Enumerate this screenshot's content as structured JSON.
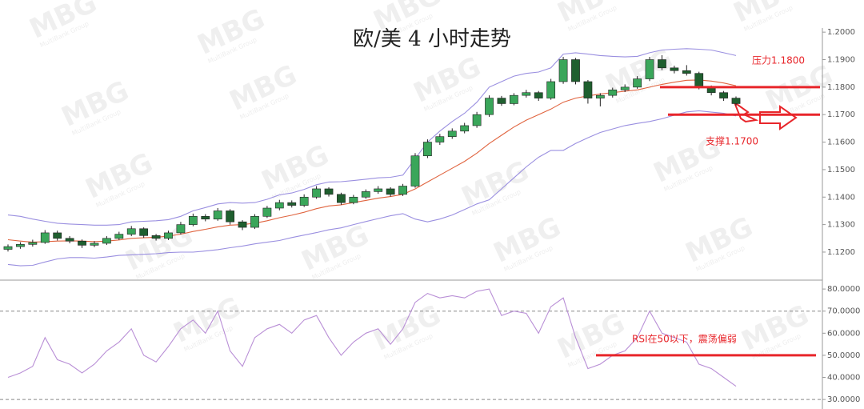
{
  "chart_data": [
    {
      "type": "candlestick",
      "title": "欧/美 4 小时走势",
      "open": [
        1.121,
        1.122,
        1.1228,
        1.1235,
        1.127,
        1.125,
        1.124,
        1.1225,
        1.1232,
        1.125,
        1.1265,
        1.1285,
        1.126,
        1.125,
        1.127,
        1.13,
        1.133,
        1.132,
        1.135,
        1.131,
        1.129,
        1.133,
        1.136,
        1.138,
        1.137,
        1.14,
        1.143,
        1.141,
        1.138,
        1.14,
        1.142,
        1.143,
        1.141,
        1.144,
        1.155,
        1.16,
        1.162,
        1.164,
        1.166,
        1.17,
        1.176,
        1.174,
        1.177,
        1.178,
        1.176,
        1.182,
        1.19,
        1.182,
        1.176,
        1.177,
        1.179,
        1.18,
        1.183,
        1.19,
        1.187,
        1.186,
        1.185,
        1.18,
        1.178,
        1.176
      ],
      "high": [
        1.1228,
        1.1236,
        1.1245,
        1.128,
        1.1278,
        1.1258,
        1.1246,
        1.124,
        1.1258,
        1.1274,
        1.1295,
        1.129,
        1.1266,
        1.1278,
        1.131,
        1.134,
        1.1338,
        1.136,
        1.1356,
        1.1316,
        1.1338,
        1.1368,
        1.139,
        1.1388,
        1.141,
        1.144,
        1.1436,
        1.1416,
        1.1408,
        1.1428,
        1.144,
        1.1436,
        1.1448,
        1.156,
        1.161,
        1.163,
        1.165,
        1.167,
        1.171,
        1.177,
        1.1768,
        1.1778,
        1.179,
        1.1786,
        1.183,
        1.191,
        1.1906,
        1.1826,
        1.1778,
        1.1798,
        1.181,
        1.184,
        1.191,
        1.1916,
        1.1878,
        1.188,
        1.1856,
        1.1806,
        1.1786,
        1.1766
      ],
      "low": [
        1.1202,
        1.1212,
        1.122,
        1.123,
        1.1242,
        1.1232,
        1.1215,
        1.1218,
        1.1226,
        1.1244,
        1.1258,
        1.1252,
        1.1242,
        1.1244,
        1.1264,
        1.1294,
        1.1312,
        1.1314,
        1.13,
        1.128,
        1.1284,
        1.1324,
        1.1352,
        1.1362,
        1.1364,
        1.1394,
        1.1402,
        1.1372,
        1.1374,
        1.1394,
        1.1412,
        1.1402,
        1.1404,
        1.1434,
        1.1542,
        1.159,
        1.1612,
        1.1632,
        1.1652,
        1.1692,
        1.1732,
        1.1734,
        1.1762,
        1.175,
        1.1754,
        1.1812,
        1.181,
        1.174,
        1.173,
        1.1762,
        1.1782,
        1.1794,
        1.1822,
        1.1862,
        1.185,
        1.1842,
        1.1792,
        1.177,
        1.175,
        1.1732
      ],
      "close": [
        1.122,
        1.1228,
        1.1235,
        1.127,
        1.125,
        1.124,
        1.1225,
        1.1232,
        1.125,
        1.1265,
        1.1285,
        1.126,
        1.125,
        1.127,
        1.13,
        1.133,
        1.132,
        1.135,
        1.131,
        1.129,
        1.133,
        1.136,
        1.138,
        1.137,
        1.14,
        1.143,
        1.141,
        1.138,
        1.14,
        1.142,
        1.143,
        1.141,
        1.144,
        1.155,
        1.16,
        1.162,
        1.164,
        1.166,
        1.17,
        1.176,
        1.174,
        1.177,
        1.178,
        1.176,
        1.182,
        1.19,
        1.182,
        1.176,
        1.177,
        1.179,
        1.18,
        1.183,
        1.19,
        1.187,
        1.186,
        1.185,
        1.18,
        1.178,
        1.176,
        1.174
      ],
      "up_color": "#3aa65a",
      "down_color": "#1f5f2f",
      "series": [
        {
          "color": "#9a8fe0",
          "values": [
            1.1335,
            1.133,
            1.132,
            1.1312,
            1.1305,
            1.1302,
            1.13,
            1.1298,
            1.1298,
            1.13,
            1.131,
            1.1312,
            1.1314,
            1.1318,
            1.133,
            1.135,
            1.1362,
            1.1375,
            1.138,
            1.1378,
            1.138,
            1.1392,
            1.1408,
            1.1415,
            1.1428,
            1.1445,
            1.1455,
            1.1456,
            1.146,
            1.1465,
            1.147,
            1.1472,
            1.148,
            1.154,
            1.16,
            1.164,
            1.1675,
            1.1705,
            1.1745,
            1.18,
            1.182,
            1.184,
            1.185,
            1.1855,
            1.187,
            1.192,
            1.1925,
            1.192,
            1.1915,
            1.1912,
            1.191,
            1.1912,
            1.1925,
            1.1935,
            1.1938,
            1.194,
            1.1938,
            1.1935,
            1.1925,
            1.1915
          ]
        },
        {
          "color": "#e0643f",
          "values": [
            1.1245,
            1.124,
            1.1236,
            1.1238,
            1.124,
            1.1241,
            1.124,
            1.1238,
            1.124,
            1.1244,
            1.125,
            1.1252,
            1.1254,
            1.1258,
            1.1265,
            1.1275,
            1.1283,
            1.1292,
            1.1298,
            1.13,
            1.1305,
            1.1314,
            1.1325,
            1.1334,
            1.1345,
            1.1358,
            1.1368,
            1.1372,
            1.138,
            1.1388,
            1.1396,
            1.1402,
            1.141,
            1.143,
            1.1455,
            1.148,
            1.1505,
            1.153,
            1.156,
            1.1595,
            1.1625,
            1.1655,
            1.168,
            1.17,
            1.172,
            1.1745,
            1.176,
            1.1768,
            1.1775,
            1.178,
            1.1785,
            1.179,
            1.18,
            1.181,
            1.1818,
            1.1825,
            1.1826,
            1.1822,
            1.1815,
            1.1805
          ]
        },
        {
          "color": "#9a8fe0",
          "values": [
            1.1155,
            1.115,
            1.1152,
            1.1164,
            1.1175,
            1.118,
            1.118,
            1.1178,
            1.1182,
            1.1188,
            1.119,
            1.1192,
            1.1194,
            1.1198,
            1.12,
            1.12,
            1.1204,
            1.1209,
            1.1216,
            1.1222,
            1.123,
            1.1236,
            1.1242,
            1.1253,
            1.1262,
            1.1271,
            1.1281,
            1.1288,
            1.13,
            1.1311,
            1.1322,
            1.1332,
            1.134,
            1.132,
            1.131,
            1.132,
            1.1335,
            1.1355,
            1.1375,
            1.139,
            1.143,
            1.147,
            1.151,
            1.1545,
            1.157,
            1.157,
            1.1595,
            1.1616,
            1.1635,
            1.1648,
            1.166,
            1.1668,
            1.1675,
            1.1685,
            1.1698,
            1.171,
            1.1714,
            1.1709,
            1.1705,
            1.1695
          ]
        }
      ],
      "ylim": [
        1.1098,
        1.2015
      ],
      "yticks": [
        {
          "value": 1.12,
          "label": "1.1200"
        },
        {
          "value": 1.13,
          "label": "1.1300"
        },
        {
          "value": 1.14,
          "label": "1.1400"
        },
        {
          "value": 1.15,
          "label": "1.1500"
        },
        {
          "value": 1.16,
          "label": "1.1600"
        },
        {
          "value": 1.17,
          "label": "1.1700"
        },
        {
          "value": 1.18,
          "label": "1.1800"
        },
        {
          "value": 1.19,
          "label": "1.1900"
        },
        {
          "value": 1.2,
          "label": "1.2000"
        }
      ],
      "levels": [
        {
          "value": 1.18,
          "label": "压力1.1800",
          "color": "#e8262b"
        },
        {
          "value": 1.17,
          "label": "支撑1.1700",
          "color": "#e8262b"
        }
      ]
    },
    {
      "type": "line",
      "series": [
        {
          "color": "#b98fd6",
          "values": [
            40,
            42,
            45,
            58,
            48,
            46,
            42,
            46,
            52,
            56,
            62,
            50,
            47,
            54,
            62,
            66,
            60,
            70,
            52,
            45,
            58,
            62,
            64,
            60,
            66,
            68,
            58,
            50,
            56,
            60,
            62,
            55,
            62,
            74,
            78,
            76,
            77,
            76,
            79,
            80,
            68,
            70,
            69,
            60,
            72,
            76,
            58,
            44,
            46,
            50,
            52,
            58,
            70,
            60,
            58,
            56,
            46,
            44,
            40,
            36
          ]
        }
      ],
      "ylim": [
        25.7,
        83.3
      ],
      "yticks": [
        {
          "value": 30,
          "label": "30.0000"
        },
        {
          "value": 40,
          "label": "40.0000"
        },
        {
          "value": 50,
          "label": "50.0000"
        },
        {
          "value": 60,
          "label": "60.0000"
        },
        {
          "value": 70,
          "label": "70.0000"
        },
        {
          "value": 80,
          "label": "80.0000"
        }
      ],
      "reference_lines": [
        70,
        30
      ],
      "levels": [
        {
          "value": 50,
          "label": "RSI在50以下，震荡偏弱",
          "color": "#e8262b"
        }
      ]
    }
  ],
  "watermark": {
    "text": "MBG",
    "subtext": "MultiBank Group"
  }
}
